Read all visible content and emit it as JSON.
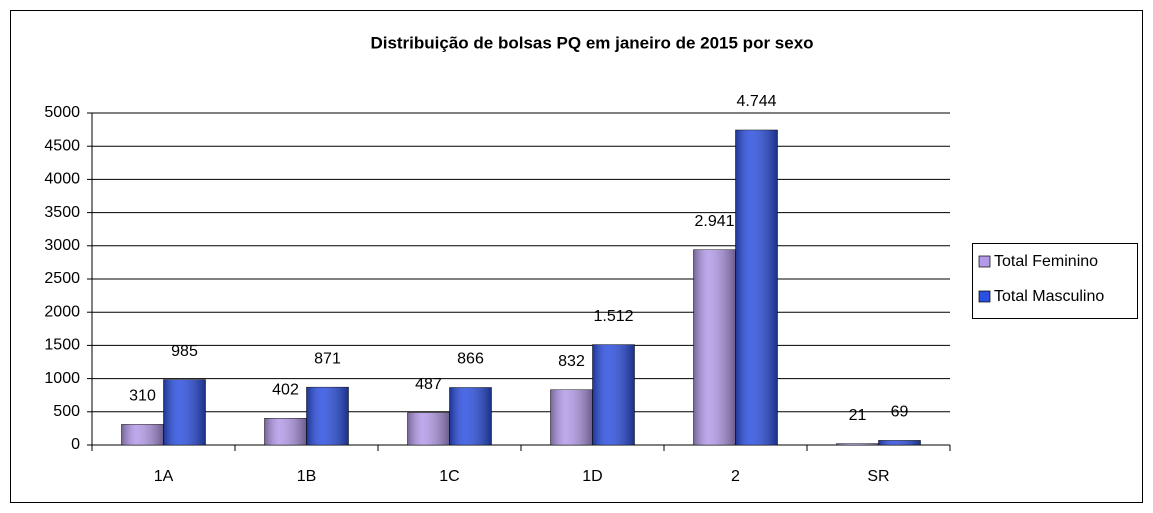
{
  "chart_data": {
    "type": "bar",
    "title": "Distribuição de bolsas PQ em janeiro de 2015 por sexo",
    "categories": [
      "1A",
      "1B",
      "1C",
      "1D",
      "2",
      "SR"
    ],
    "series": [
      {
        "name": "Total Feminino",
        "color": "#b39ae8",
        "values": [
          310,
          402,
          487,
          832,
          2941,
          21
        ],
        "value_labels": [
          "310",
          "402",
          "487",
          "832",
          "2.941",
          "21"
        ]
      },
      {
        "name": "Total Masculino",
        "color": "#2b4fe0",
        "values": [
          985,
          871,
          866,
          1512,
          4744,
          69
        ],
        "value_labels": [
          "985",
          "871",
          "866",
          "1.512",
          "4.744",
          "69"
        ]
      }
    ],
    "ylim": [
      0,
      5000
    ],
    "yticks": [
      0,
      500,
      1000,
      1500,
      2000,
      2500,
      3000,
      3500,
      4000,
      4500,
      5000
    ],
    "grid": true,
    "legend": "right"
  }
}
